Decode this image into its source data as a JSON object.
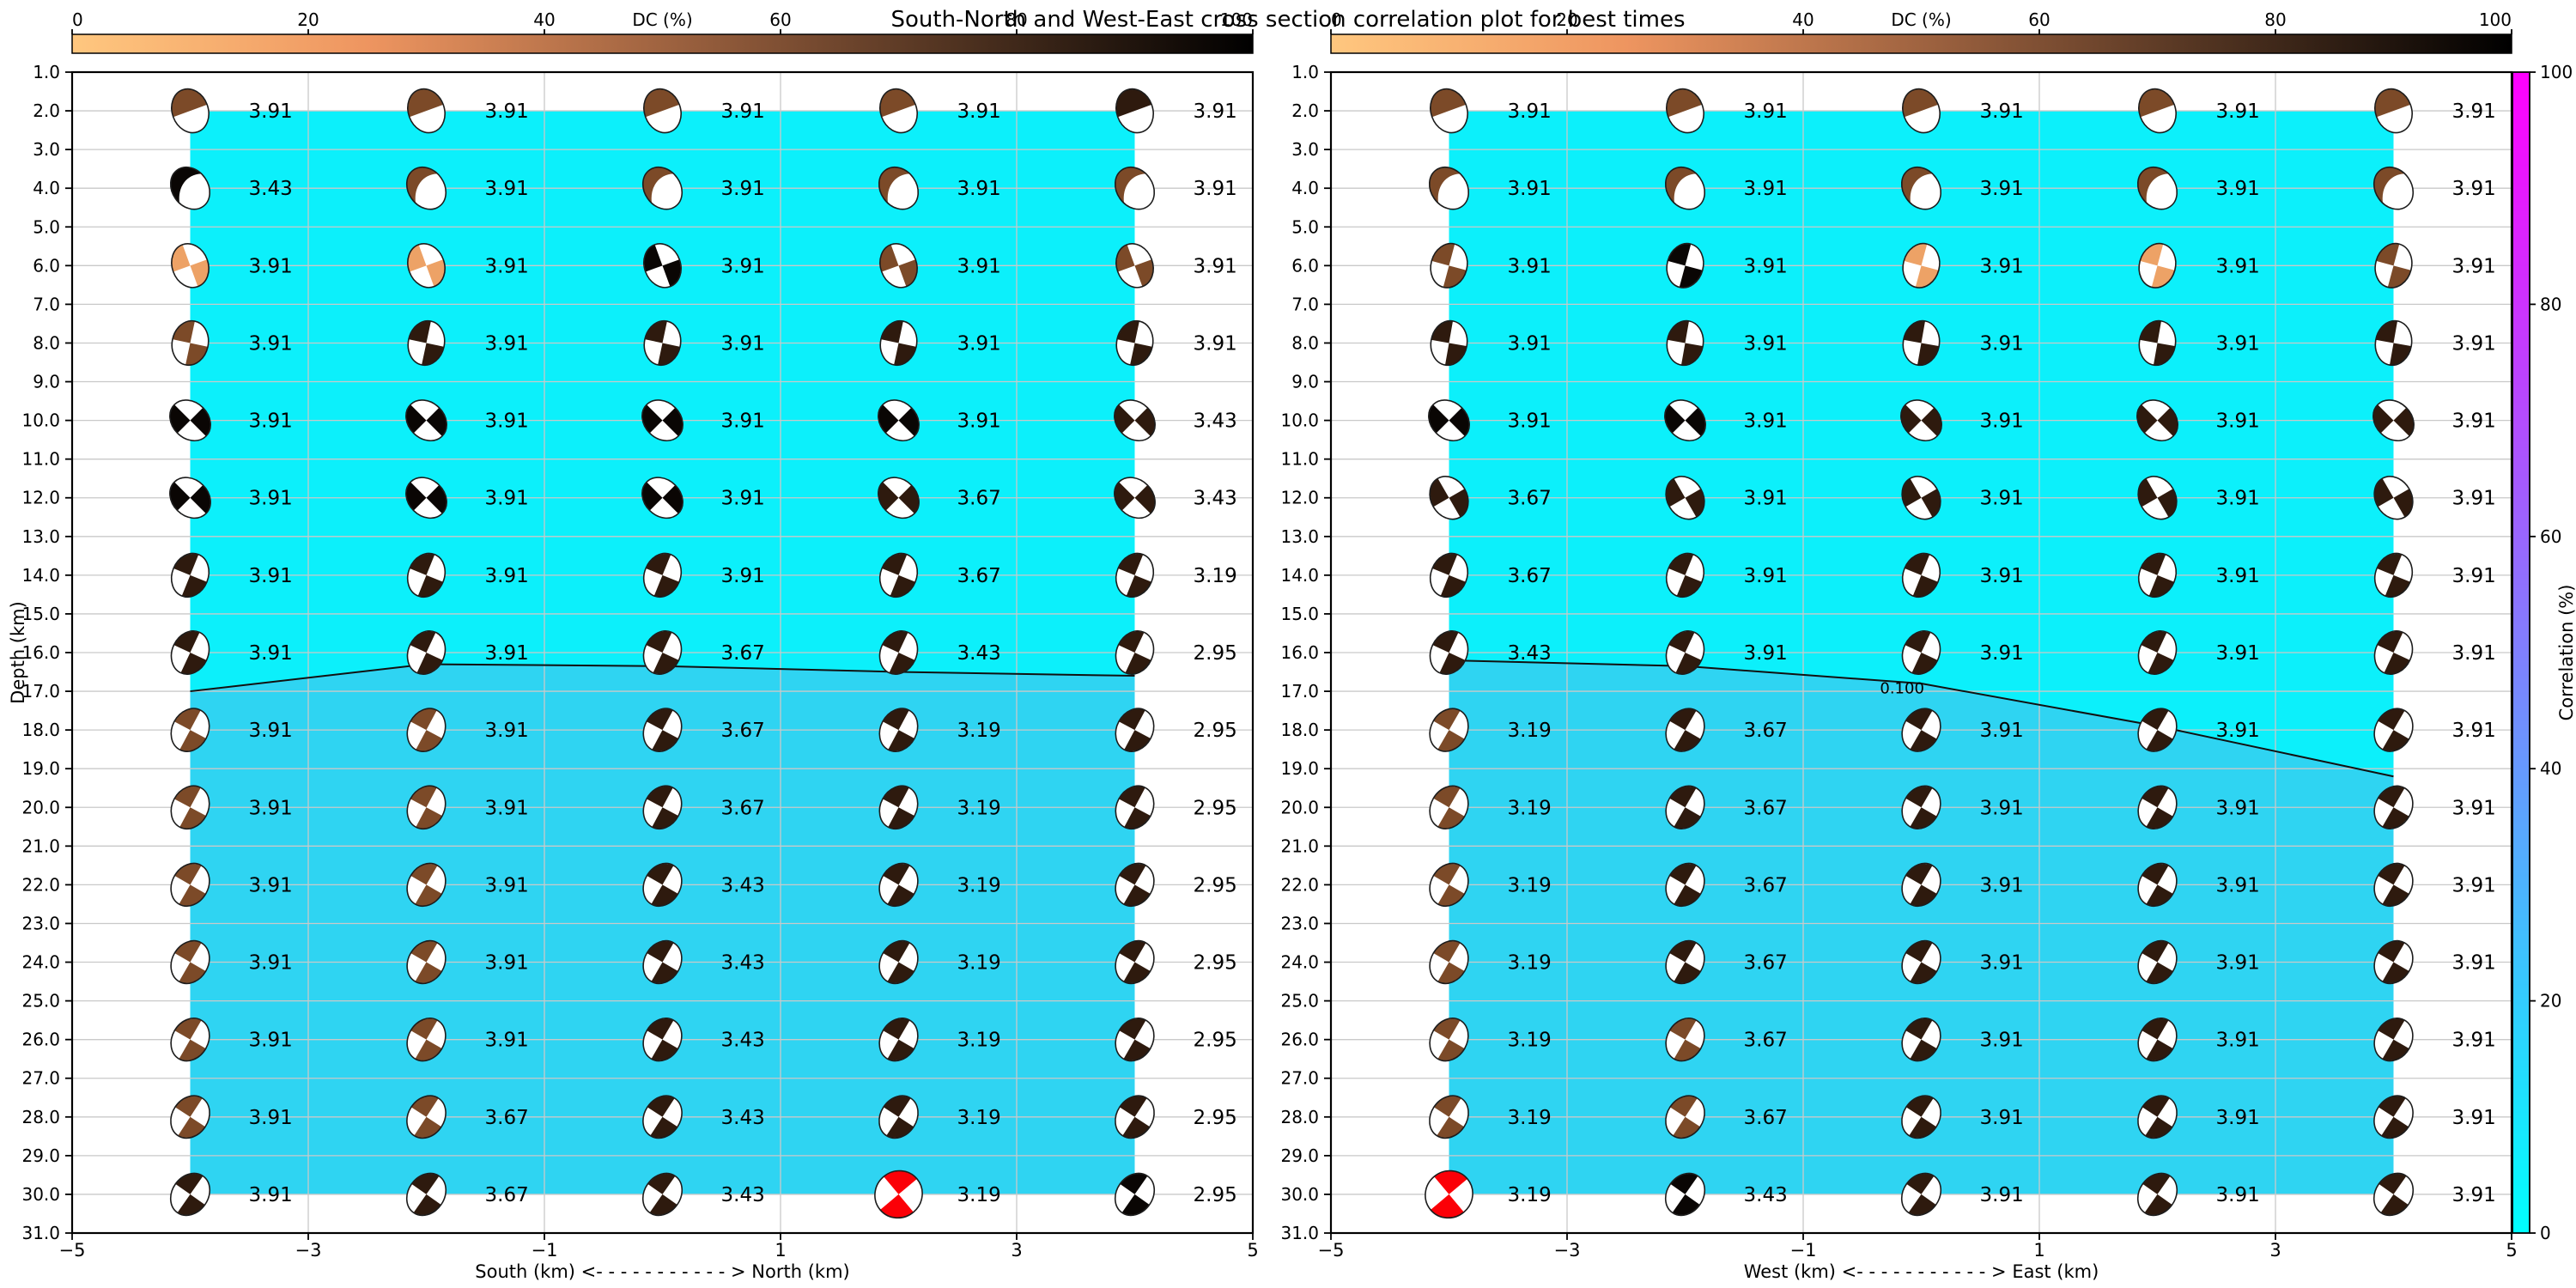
{
  "title": "South-North and West-East cross section correlation plot for best times",
  "dc_colorbar": {
    "label": "DC (%)",
    "ticks": [
      "0",
      "20",
      "40",
      "60",
      "80",
      "100"
    ],
    "gradient": [
      "#ffc77f",
      "#ee9560",
      "#9f6340",
      "#4f3220",
      "#000000"
    ]
  },
  "correlation_colorbar": {
    "label": "Correlation (%)",
    "ticks": [
      "0",
      "20",
      "40",
      "60",
      "80",
      "100"
    ],
    "gradient_bottom": "#00ffff",
    "gradient_top": "#ff00ff"
  },
  "depth_axis": {
    "label": "Depth (km)",
    "min": 1.0,
    "max": 31.0,
    "step": 1.0
  },
  "palette": {
    "o": "#eda266",
    "b": "#7c4a28",
    "d": "#2e1a0e",
    "k": "#0a0604",
    "r": "#fb0007"
  },
  "region_colors": {
    "upper": "#0cf0fb",
    "lower": "#2fd4f2"
  },
  "chart_data": [
    {
      "type": "scatter",
      "panel": "South-North",
      "xlabel": "South (km) <- - - - - - - - - - - > North (km)",
      "ylabel": "Depth (km)",
      "xticks": [
        "−5",
        "−3",
        "−1",
        "1",
        "3",
        "5"
      ],
      "xtick_km": [
        -5,
        -3,
        -1,
        1,
        3,
        5
      ],
      "xlim": [
        -5,
        5
      ],
      "ylim": [
        1,
        31
      ],
      "gridlines_km": [
        -3,
        -1,
        1,
        3
      ],
      "columns_km": [
        -4,
        -2,
        0,
        2,
        4
      ],
      "row_depths": [
        2,
        4,
        6,
        8,
        10,
        12,
        14,
        16,
        18,
        20,
        22,
        24,
        26,
        28,
        30
      ],
      "row_styles": [
        {
          "kind": "half",
          "rot": -20
        },
        {
          "kind": "band",
          "rot": -35
        },
        {
          "kind": "quad",
          "rot": -20
        },
        {
          "kind": "quad",
          "rot": 12
        },
        {
          "kind": "quad",
          "rot": -45
        },
        {
          "kind": "quad",
          "rot": -45
        },
        {
          "kind": "quad",
          "rot": 22
        },
        {
          "kind": "quad",
          "rot": 25
        },
        {
          "kind": "quad",
          "rot": 28
        },
        {
          "kind": "quad",
          "rot": 28
        },
        {
          "kind": "quad",
          "rot": 30
        },
        {
          "kind": "quad",
          "rot": 30
        },
        {
          "kind": "quad",
          "rot": 30
        },
        {
          "kind": "quad",
          "rot": 33
        },
        {
          "kind": "quad",
          "rot": 35
        }
      ],
      "values": [
        [
          "3.91",
          "3.91",
          "3.91",
          "3.91",
          "3.91"
        ],
        [
          "3.43",
          "3.91",
          "3.91",
          "3.91",
          "3.91"
        ],
        [
          "3.91",
          "3.91",
          "3.91",
          "3.91",
          "3.91"
        ],
        [
          "3.91",
          "3.91",
          "3.91",
          "3.91",
          "3.91"
        ],
        [
          "3.91",
          "3.91",
          "3.91",
          "3.91",
          "3.43"
        ],
        [
          "3.91",
          "3.91",
          "3.91",
          "3.67",
          "3.43"
        ],
        [
          "3.91",
          "3.91",
          "3.91",
          "3.67",
          "3.19"
        ],
        [
          "3.91",
          "3.91",
          "3.67",
          "3.43",
          "2.95"
        ],
        [
          "3.91",
          "3.91",
          "3.67",
          "3.19",
          "2.95"
        ],
        [
          "3.91",
          "3.91",
          "3.67",
          "3.19",
          "2.95"
        ],
        [
          "3.91",
          "3.91",
          "3.43",
          "3.19",
          "2.95"
        ],
        [
          "3.91",
          "3.91",
          "3.43",
          "3.19",
          "2.95"
        ],
        [
          "3.91",
          "3.91",
          "3.43",
          "3.19",
          "2.95"
        ],
        [
          "3.91",
          "3.67",
          "3.43",
          "3.19",
          "2.95"
        ],
        [
          "3.91",
          "3.67",
          "3.43",
          "3.19",
          "2.95"
        ]
      ],
      "ball_colors": [
        [
          "b",
          "b",
          "b",
          "b",
          "d"
        ],
        [
          "k",
          "b",
          "b",
          "b",
          "b"
        ],
        [
          "o",
          "o",
          "k",
          "b",
          "b"
        ],
        [
          "b",
          "d",
          "d",
          "d",
          "d"
        ],
        [
          "k",
          "k",
          "k",
          "k",
          "d"
        ],
        [
          "k",
          "k",
          "k",
          "d",
          "d"
        ],
        [
          "d",
          "d",
          "d",
          "d",
          "d"
        ],
        [
          "d",
          "d",
          "d",
          "d",
          "d"
        ],
        [
          "b",
          "b",
          "d",
          "d",
          "d"
        ],
        [
          "b",
          "b",
          "d",
          "d",
          "d"
        ],
        [
          "b",
          "b",
          "d",
          "d",
          "d"
        ],
        [
          "b",
          "b",
          "d",
          "d",
          "d"
        ],
        [
          "b",
          "b",
          "d",
          "d",
          "d"
        ],
        [
          "b",
          "b",
          "d",
          "d",
          "d"
        ],
        [
          "d",
          "d",
          "d",
          "r",
          "k"
        ]
      ],
      "contour_depths": [
        17.0,
        16.3,
        16.35,
        16.5,
        16.6
      ],
      "contour_label": null
    },
    {
      "type": "scatter",
      "panel": "West-East",
      "xlabel": "West (km) <- - - - - - - - - - - > East (km)",
      "ylabel": "Depth (km)",
      "xticks": [
        "−5",
        "−3",
        "−1",
        "1",
        "3",
        "5"
      ],
      "xtick_km": [
        -5,
        -3,
        -1,
        1,
        3,
        5
      ],
      "xlim": [
        -5,
        5
      ],
      "ylim": [
        1,
        31
      ],
      "gridlines_km": [
        -3,
        -1,
        1,
        3
      ],
      "columns_km": [
        -4,
        -2,
        0,
        2,
        4
      ],
      "row_depths": [
        2,
        4,
        6,
        8,
        10,
        12,
        14,
        16,
        18,
        20,
        22,
        24,
        26,
        28,
        30
      ],
      "row_styles": [
        {
          "kind": "half",
          "rot": -20
        },
        {
          "kind": "band",
          "rot": -35
        },
        {
          "kind": "quad",
          "rot": 15
        },
        {
          "kind": "quad",
          "rot": 10
        },
        {
          "kind": "quad",
          "rot": -45
        },
        {
          "kind": "quad",
          "rot": -30
        },
        {
          "kind": "quad",
          "rot": 22
        },
        {
          "kind": "quad",
          "rot": 25
        },
        {
          "kind": "quad",
          "rot": 30
        },
        {
          "kind": "quad",
          "rot": 30
        },
        {
          "kind": "quad",
          "rot": 30
        },
        {
          "kind": "quad",
          "rot": 30
        },
        {
          "kind": "quad",
          "rot": 30
        },
        {
          "kind": "quad",
          "rot": 33
        },
        {
          "kind": "quad",
          "rot": 35
        }
      ],
      "values": [
        [
          "3.91",
          "3.91",
          "3.91",
          "3.91",
          "3.91"
        ],
        [
          "3.91",
          "3.91",
          "3.91",
          "3.91",
          "3.91"
        ],
        [
          "3.91",
          "3.91",
          "3.91",
          "3.91",
          "3.91"
        ],
        [
          "3.91",
          "3.91",
          "3.91",
          "3.91",
          "3.91"
        ],
        [
          "3.91",
          "3.91",
          "3.91",
          "3.91",
          "3.91"
        ],
        [
          "3.67",
          "3.91",
          "3.91",
          "3.91",
          "3.91"
        ],
        [
          "3.67",
          "3.91",
          "3.91",
          "3.91",
          "3.91"
        ],
        [
          "3.43",
          "3.91",
          "3.91",
          "3.91",
          "3.91"
        ],
        [
          "3.19",
          "3.67",
          "3.91",
          "3.91",
          "3.91"
        ],
        [
          "3.19",
          "3.67",
          "3.91",
          "3.91",
          "3.91"
        ],
        [
          "3.19",
          "3.67",
          "3.91",
          "3.91",
          "3.91"
        ],
        [
          "3.19",
          "3.67",
          "3.91",
          "3.91",
          "3.91"
        ],
        [
          "3.19",
          "3.67",
          "3.91",
          "3.91",
          "3.91"
        ],
        [
          "3.19",
          "3.67",
          "3.91",
          "3.91",
          "3.91"
        ],
        [
          "3.19",
          "3.43",
          "3.91",
          "3.91",
          "3.91"
        ]
      ],
      "ball_colors": [
        [
          "b",
          "b",
          "b",
          "b",
          "b"
        ],
        [
          "b",
          "b",
          "b",
          "b",
          "b"
        ],
        [
          "b",
          "k",
          "o",
          "o",
          "b"
        ],
        [
          "d",
          "d",
          "d",
          "d",
          "d"
        ],
        [
          "k",
          "k",
          "d",
          "d",
          "d"
        ],
        [
          "d",
          "d",
          "d",
          "d",
          "d"
        ],
        [
          "d",
          "d",
          "d",
          "d",
          "d"
        ],
        [
          "d",
          "d",
          "d",
          "d",
          "d"
        ],
        [
          "b",
          "d",
          "d",
          "d",
          "d"
        ],
        [
          "b",
          "d",
          "d",
          "d",
          "d"
        ],
        [
          "b",
          "d",
          "d",
          "d",
          "d"
        ],
        [
          "b",
          "d",
          "d",
          "d",
          "d"
        ],
        [
          "b",
          "b",
          "d",
          "d",
          "d"
        ],
        [
          "b",
          "b",
          "d",
          "d",
          "d"
        ],
        [
          "r",
          "k",
          "d",
          "d",
          "d"
        ]
      ],
      "contour_depths": [
        16.2,
        16.35,
        16.8,
        17.9,
        19.2
      ],
      "contour_label": {
        "text": "0.100",
        "km": -0.35,
        "depth": 17.05
      }
    }
  ]
}
